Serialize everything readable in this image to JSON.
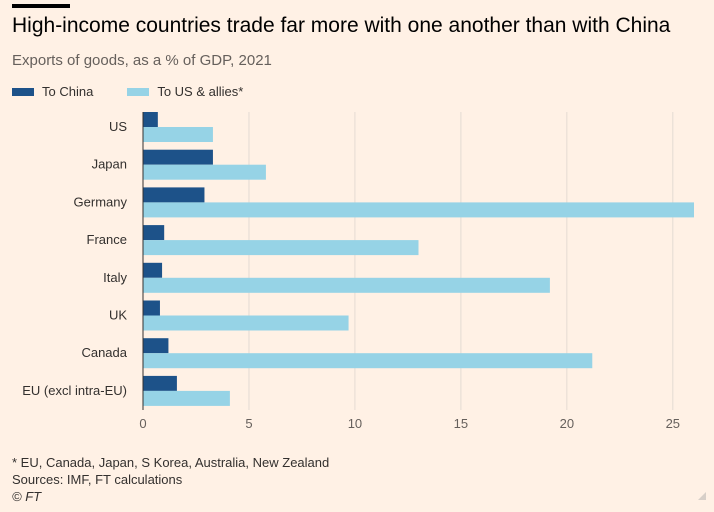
{
  "title": "High-income countries trade far more with one another than with China",
  "subtitle": "Exports of goods, as a % of GDP, 2021",
  "footer": {
    "note": "* EU, Canada, Japan, S Korea, Australia, New Zealand",
    "sources": "Sources: IMF, FT calculations",
    "credit": "© FT"
  },
  "colors": {
    "china": "#1d5289",
    "allies": "#96d3e6",
    "grid": "#e4dbd3",
    "axis": "#66605c"
  },
  "chart_data": {
    "type": "bar",
    "orientation": "horizontal",
    "categories": [
      "US",
      "Japan",
      "Germany",
      "France",
      "Italy",
      "UK",
      "Canada",
      "EU (excl intra-EU)"
    ],
    "series": [
      {
        "name": "To China",
        "values": [
          0.7,
          3.3,
          2.9,
          1.0,
          0.9,
          0.8,
          1.2,
          1.6
        ]
      },
      {
        "name": "To US & allies*",
        "values": [
          3.3,
          5.8,
          26.0,
          13.0,
          19.2,
          9.7,
          21.2,
          4.1
        ]
      }
    ],
    "xlim": [
      0,
      26
    ],
    "xticks": [
      0,
      5,
      10,
      15,
      20,
      25
    ],
    "grid": true,
    "legend": "top-left"
  }
}
